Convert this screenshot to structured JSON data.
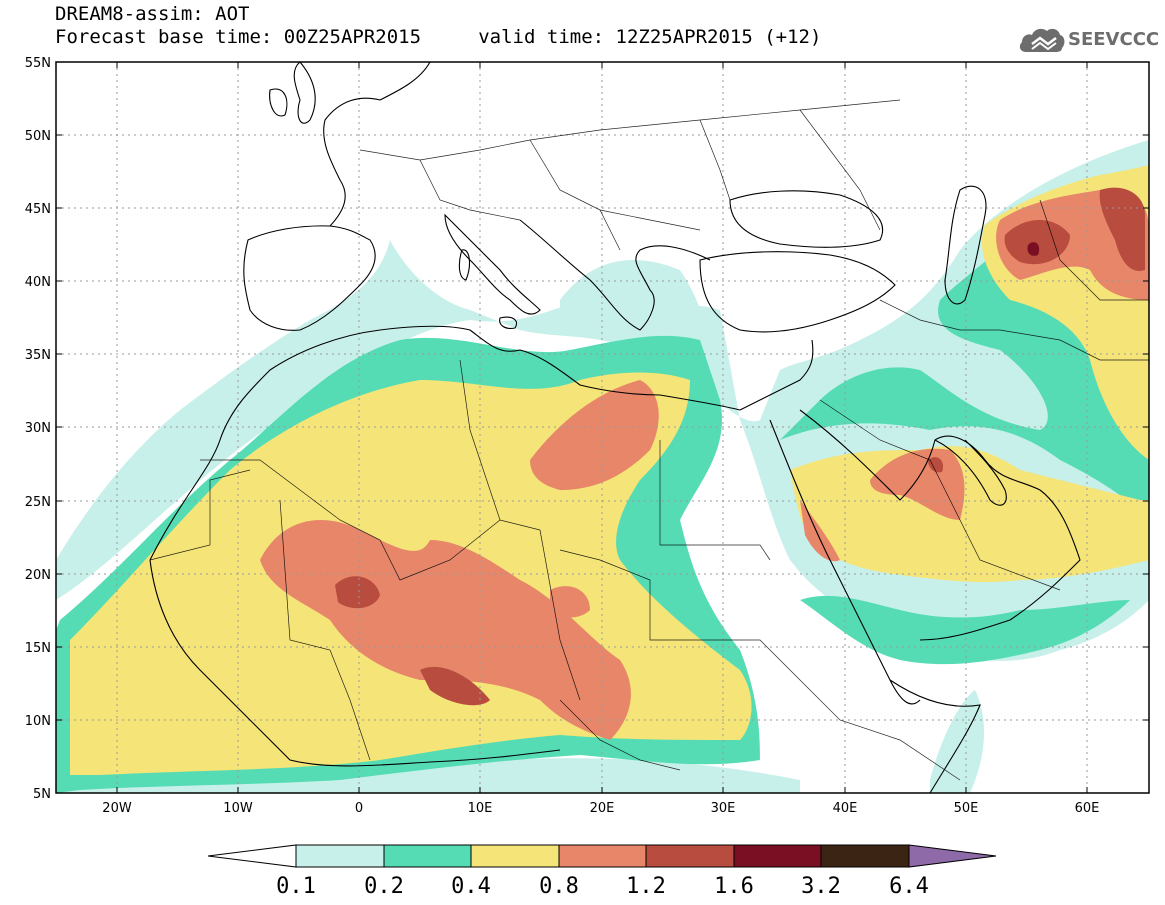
{
  "title": {
    "line1": "DREAM8-assim: AOT",
    "line2": "Forecast base time: 00Z25APR2015     valid time: 12Z25APR2015 (+12)"
  },
  "logo": {
    "text": "SEEVCCC",
    "icon": "cloud-logo-icon"
  },
  "map": {
    "lon_range": [
      -25,
      65
    ],
    "lat_range": [
      5,
      55
    ],
    "lat_ticks": [
      "55N",
      "50N",
      "45N",
      "40N",
      "35N",
      "30N",
      "25N",
      "20N",
      "15N",
      "10N",
      "5N"
    ],
    "lon_ticks": [
      "20W",
      "10W",
      "0",
      "10E",
      "20E",
      "30E",
      "40E",
      "50E",
      "60E"
    ],
    "grid": "dotted"
  },
  "colorbar": {
    "labels": [
      "0.1",
      "0.2",
      "0.4",
      "0.8",
      "1.2",
      "1.6",
      "3.2",
      "6.4"
    ],
    "colors": [
      "#c8f0ea",
      "#55dcb4",
      "#f5e478",
      "#e8866a",
      "#b84c3e",
      "#7a0f23",
      "#3c2414",
      "#8e6aa8"
    ],
    "extend": "both"
  }
}
